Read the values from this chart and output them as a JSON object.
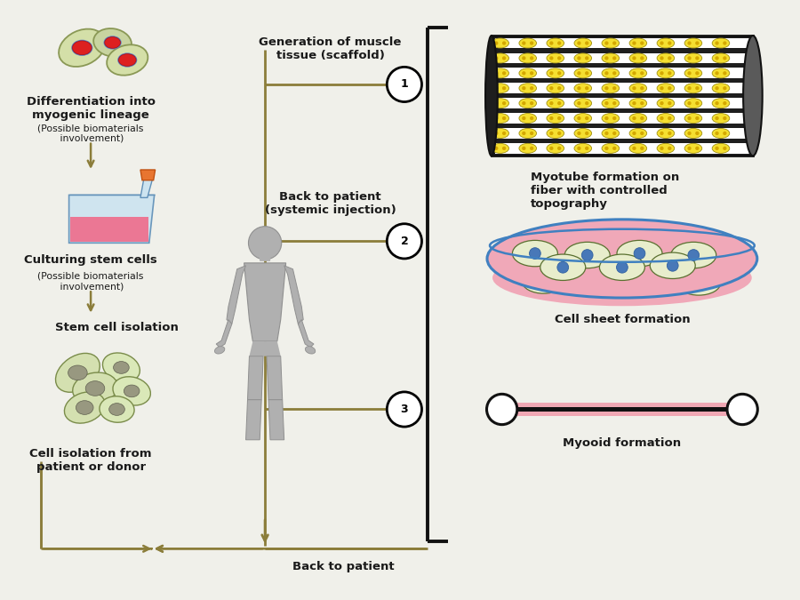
{
  "bg_color": "#f0f0ea",
  "arrow_color": "#8B7D3A",
  "text_color": "#1a1a1a",
  "labels": {
    "diff_title": "Differentiation into\nmyogenic lineage",
    "diff_sub": "(Possible biomaterials\n involvement)",
    "culture_title": "Culturing stem cells",
    "culture_sub": "(Possible biomaterials\n involvement)",
    "isolation_title": "Stem cell isolation",
    "cell_iso_title": "Cell isolation from\npatient or donor",
    "scaffold_title": "Generation of muscle\ntissue (scaffold)",
    "back_systemic": "Back to patient\n(systemic injection)",
    "back_patient": "Back to patient",
    "myotube_title": "Myotube formation on\nfiber with controlled\ntopography",
    "cellsheet_title": "Cell sheet formation",
    "myooid_title": "Myooid formation"
  },
  "line_color": "#111111",
  "scaffold_line_color": "#8B7D3A"
}
